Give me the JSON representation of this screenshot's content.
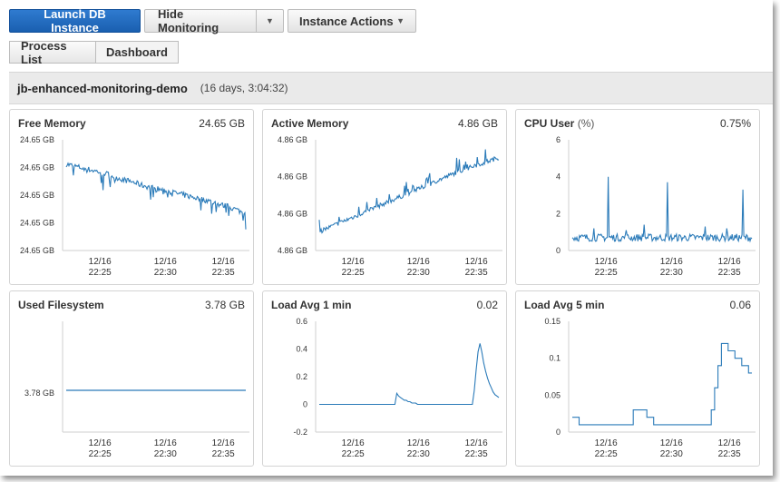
{
  "toolbar": {
    "launch_label": "Launch DB Instance",
    "hide_monitoring_label": "Hide Monitoring",
    "instance_actions_label": "Instance Actions"
  },
  "tabs": [
    {
      "label": "Process List",
      "active": false
    },
    {
      "label": "Dashboard",
      "active": true
    }
  ],
  "instance": {
    "name": "jb-enhanced-monitoring-demo",
    "uptime": "(16 days, 3:04:32)"
  },
  "colors": {
    "primary": "#1f6cc4",
    "line": "#2b7bb9"
  },
  "panels": [
    {
      "title": "Free Memory",
      "unit": "",
      "value": "24.65 GB"
    },
    {
      "title": "Active Memory",
      "unit": "",
      "value": "4.86 GB"
    },
    {
      "title": "CPU User",
      "unit": "(%)",
      "value": "0.75%"
    },
    {
      "title": "Used Filesystem",
      "unit": "",
      "value": "3.78 GB"
    },
    {
      "title": "Load Avg 1 min",
      "unit": "",
      "value": "0.02"
    },
    {
      "title": "Load Avg 5 min",
      "unit": "",
      "value": "0.06"
    }
  ],
  "chart_data": [
    {
      "type": "line",
      "title": "Free Memory",
      "yticks": [
        "24.65 GB",
        "24.65 GB",
        "24.65 GB",
        "24.65 GB",
        "24.65 GB"
      ],
      "xticks": [
        [
          "12/16",
          "22:25"
        ],
        [
          "12/16",
          "22:30"
        ],
        [
          "12/16",
          "22:35"
        ]
      ],
      "series": [
        {
          "values": [
            0.78,
            0.76,
            0.74,
            0.72,
            0.7,
            0.67,
            0.64,
            0.62,
            0.59,
            0.57,
            0.55,
            0.53,
            0.51,
            0.49,
            0.47,
            0.45,
            0.42,
            0.4,
            0.37,
            0.33
          ],
          "noise": 0.05,
          "dips": 0.14
        }
      ]
    },
    {
      "type": "line",
      "title": "Active Memory",
      "yticks": [
        "4.86 GB",
        "4.86 GB",
        "4.86 GB",
        "4.86 GB"
      ],
      "xticks": [
        [
          "12/16",
          "22:25"
        ],
        [
          "12/16",
          "22:30"
        ],
        [
          "12/16",
          "22:35"
        ]
      ],
      "series": [
        {
          "values": [
            0.17,
            0.22,
            0.27,
            0.32,
            0.37,
            0.42,
            0.47,
            0.52,
            0.57,
            0.62,
            0.67,
            0.72,
            0.76,
            0.8,
            0.84
          ],
          "noise": 0.04,
          "spikes": 0.12
        }
      ]
    },
    {
      "type": "line",
      "title": "CPU User (%)",
      "yticks": [
        "6",
        "4",
        "2",
        "0"
      ],
      "ylim": [
        0,
        6
      ],
      "xticks": [
        [
          "12/16",
          "22:25"
        ],
        [
          "12/16",
          "22:30"
        ],
        [
          "12/16",
          "22:35"
        ]
      ],
      "series": [
        {
          "values": [
            0.7,
            0.7,
            0.7,
            0.7,
            0.7,
            0.7
          ],
          "noise": 0.2,
          "spikes_at": [
            [
              0.2,
              4.0
            ],
            [
              0.53,
              3.7
            ],
            [
              0.95,
              3.3
            ],
            [
              0.74,
              1.3
            ],
            [
              0.12,
              1.2
            ],
            [
              0.4,
              1.4
            ],
            [
              0.86,
              1.2
            ],
            [
              0.3,
              1.1
            ]
          ]
        }
      ]
    },
    {
      "type": "line",
      "title": "Used Filesystem",
      "yticks": [
        "3.78 GB"
      ],
      "xticks": [
        [
          "12/16",
          "22:25"
        ],
        [
          "12/16",
          "22:30"
        ],
        [
          "12/16",
          "22:35"
        ]
      ],
      "series": [
        {
          "values": [
            3.78,
            3.78
          ]
        }
      ]
    },
    {
      "type": "line",
      "title": "Load Avg 1 min",
      "yticks": [
        "0.6",
        "0.4",
        "0.2",
        "0",
        "-0.2"
      ],
      "ylim": [
        -0.2,
        0.6
      ],
      "xticks": [
        [
          "12/16",
          "22:25"
        ],
        [
          "12/16",
          "22:30"
        ],
        [
          "12/16",
          "22:35"
        ]
      ],
      "series": [
        {
          "values": [
            0.0,
            0.0,
            0.0,
            0.0,
            0.0,
            0.0,
            0.0,
            0.0,
            0.0,
            0.0,
            0.0,
            0.0,
            0.0,
            0.0,
            0.0,
            0.0,
            0.0,
            0.0,
            0.0,
            0.0,
            0.0,
            0.0,
            0.0,
            0.0,
            0.0,
            0.0,
            0.0,
            0.0,
            0.0,
            0.0,
            0.0,
            0.0,
            0.0,
            0.0,
            0.0,
            0.0,
            0.0,
            0.0,
            0.0,
            0.0,
            0.0,
            0.08,
            0.06,
            0.05,
            0.04,
            0.03,
            0.03,
            0.02,
            0.02,
            0.01,
            0.01,
            0.01,
            0.0,
            0.0,
            0.0,
            0.0,
            0.0,
            0.0,
            0.0,
            0.0,
            0.0,
            0.0,
            0.0,
            0.0,
            0.0,
            0.0,
            0.0,
            0.0,
            0.0,
            0.0,
            0.0,
            0.0,
            0.0,
            0.0,
            0.0,
            0.0,
            0.0,
            0.0,
            0.0,
            0.0,
            0.0,
            0.0,
            0.1,
            0.25,
            0.38,
            0.44,
            0.38,
            0.3,
            0.24,
            0.19,
            0.15,
            0.12,
            0.09,
            0.07,
            0.06,
            0.05
          ]
        }
      ]
    },
    {
      "type": "line",
      "title": "Load Avg 5 min",
      "yticks": [
        "0.15",
        "0.1",
        "0.05",
        "0"
      ],
      "ylim": [
        0,
        0.15
      ],
      "xticks": [
        [
          "12/16",
          "22:25"
        ],
        [
          "12/16",
          "22:30"
        ],
        [
          "12/16",
          "22:35"
        ]
      ],
      "series": [
        {
          "step": true,
          "values": [
            0.02,
            0.02,
            0.01,
            0.01,
            0.01,
            0.01,
            0.01,
            0.01,
            0.01,
            0.01,
            0.01,
            0.01,
            0.01,
            0.01,
            0.01,
            0.01,
            0.01,
            0.01,
            0.03,
            0.03,
            0.03,
            0.03,
            0.02,
            0.02,
            0.01,
            0.01,
            0.01,
            0.01,
            0.01,
            0.01,
            0.01,
            0.01,
            0.01,
            0.01,
            0.01,
            0.01,
            0.01,
            0.01,
            0.01,
            0.01,
            0.01,
            0.03,
            0.06,
            0.09,
            0.12,
            0.12,
            0.11,
            0.11,
            0.1,
            0.1,
            0.09,
            0.09,
            0.08,
            0.08
          ]
        }
      ]
    }
  ]
}
